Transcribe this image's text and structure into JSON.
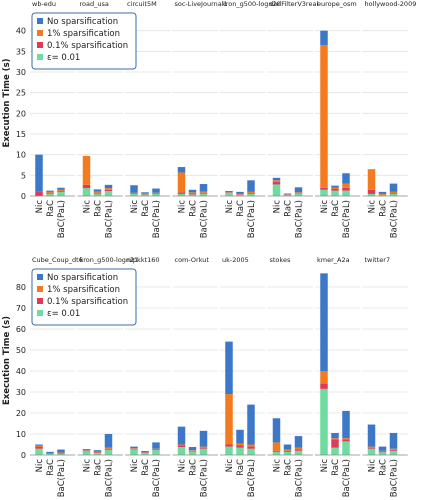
{
  "colors": {
    "No sparsification": "#3d78c8",
    "1% sparsification": "#f47a20",
    "0.1% sparsification": "#e0395a",
    "ε= 0.01": "#6ddc9e"
  },
  "chart_data": [
    {
      "type": "bar",
      "stacked": true,
      "ylabel": "Execution Time (s)",
      "ylim": [
        0,
        45
      ],
      "yticks": [
        0,
        5,
        10,
        15,
        20,
        25,
        30,
        35,
        40
      ],
      "legend": {
        "position": "top-left",
        "entries": [
          "No sparsification",
          "1% sparsification",
          "0.1% sparsification",
          "ε= 0.01"
        ]
      },
      "categories": [
        "Nic",
        "RaC",
        "BaC(PaL)"
      ],
      "panels": [
        {
          "title": "wb-edu",
          "bars": [
            {
              "blue": 9.0,
              "orange": 0.0,
              "red": 1.0,
              "green": 0.0
            },
            {
              "blue": 0.3,
              "orange": 0.2,
              "red": 0.2,
              "green": 0.6
            },
            {
              "blue": 0.5,
              "orange": 0.3,
              "red": 0.2,
              "green": 1.0
            }
          ]
        },
        {
          "title": "road_usa",
          "bars": [
            {
              "blue": 0.0,
              "orange": 7.0,
              "red": 0.8,
              "green": 1.9
            },
            {
              "blue": 0.5,
              "orange": 0.3,
              "red": 0.2,
              "green": 0.6
            },
            {
              "blue": 0.8,
              "orange": 0.4,
              "red": 0.3,
              "green": 1.2
            }
          ]
        },
        {
          "title": "circuit5M",
          "bars": [
            {
              "blue": 1.8,
              "orange": 0.0,
              "red": 0.2,
              "green": 0.6
            },
            {
              "blue": 0.3,
              "orange": 0.1,
              "red": 0.1,
              "green": 0.4
            },
            {
              "blue": 1.0,
              "orange": 0.2,
              "red": 0.1,
              "green": 0.5
            }
          ]
        },
        {
          "title": "soc-LiveJournal1",
          "bars": [
            {
              "blue": 1.3,
              "orange": 4.8,
              "red": 0.4,
              "green": 0.5
            },
            {
              "blue": 0.6,
              "orange": 0.3,
              "red": 0.2,
              "green": 0.4
            },
            {
              "blue": 1.8,
              "orange": 0.3,
              "red": 0.2,
              "green": 0.6
            }
          ]
        },
        {
          "title": "kron_g500-logn20",
          "bars": [
            {
              "blue": 0.3,
              "orange": 0.1,
              "red": 0.1,
              "green": 0.7
            },
            {
              "blue": 0.5,
              "orange": 0.1,
              "red": 0.1,
              "green": 0.3
            },
            {
              "blue": 2.8,
              "orange": 0.3,
              "red": 0.2,
              "green": 0.5
            }
          ]
        },
        {
          "title": "dielFilterV3real",
          "bars": [
            {
              "blue": 0.6,
              "orange": 0.4,
              "red": 0.6,
              "green": 2.8
            },
            {
              "blue": 0.2,
              "orange": 0.1,
              "red": 0.1,
              "green": 0.2
            },
            {
              "blue": 1.2,
              "orange": 0.2,
              "red": 0.1,
              "green": 0.6
            }
          ]
        },
        {
          "title": "europe_osm",
          "bars": [
            {
              "blue": 3.5,
              "orange": 34.5,
              "red": 0.5,
              "green": 1.5
            },
            {
              "blue": 0.5,
              "orange": 0.3,
              "red": 0.4,
              "green": 1.3
            },
            {
              "blue": 2.5,
              "orange": 1.0,
              "red": 0.7,
              "green": 1.3
            }
          ]
        },
        {
          "title": "hollywood-2009",
          "bars": [
            {
              "blue": 0.0,
              "orange": 5.0,
              "red": 1.0,
              "green": 0.5
            },
            {
              "blue": 0.5,
              "orange": 0.2,
              "red": 0.1,
              "green": 0.2
            },
            {
              "blue": 2.0,
              "orange": 0.3,
              "red": 0.2,
              "green": 0.5
            }
          ]
        }
      ]
    },
    {
      "type": "bar",
      "stacked": true,
      "ylabel": "Execution Time (s)",
      "ylim": [
        0,
        90
      ],
      "yticks": [
        0,
        10,
        20,
        30,
        40,
        50,
        60,
        70,
        80
      ],
      "legend": {
        "position": "top-left",
        "entries": [
          "No sparsification",
          "1% sparsification",
          "0.1% sparsification",
          "ε= 0.01"
        ]
      },
      "categories": [
        "Nic",
        "RaC",
        "BaC(PaL)"
      ],
      "panels": [
        {
          "title": "Cube_Coup_dt6",
          "bars": [
            {
              "blue": 0.5,
              "orange": 0.5,
              "red": 1.0,
              "green": 3.0
            },
            {
              "blue": 0.6,
              "orange": 0.2,
              "red": 0.2,
              "green": 0.5
            },
            {
              "blue": 1.4,
              "orange": 0.3,
              "red": 0.3,
              "green": 0.6
            }
          ]
        },
        {
          "title": "kron_g500-logn21",
          "bars": [
            {
              "blue": 0.6,
              "orange": 0.2,
              "red": 0.2,
              "green": 1.8
            },
            {
              "blue": 0.8,
              "orange": 0.2,
              "red": 0.3,
              "green": 1.0
            },
            {
              "blue": 6.5,
              "orange": 0.5,
              "red": 0.5,
              "green": 2.5
            }
          ]
        },
        {
          "title": "nlpkkt160",
          "bars": [
            {
              "blue": 0.8,
              "orange": 0.2,
              "red": 0.3,
              "green": 2.7
            },
            {
              "blue": 0.6,
              "orange": 0.1,
              "red": 0.2,
              "green": 1.0
            },
            {
              "blue": 3.0,
              "orange": 0.3,
              "red": 0.4,
              "green": 2.3
            }
          ]
        },
        {
          "title": "com-Orkut",
          "bars": [
            {
              "blue": 8.5,
              "orange": 0.5,
              "red": 0.7,
              "green": 3.8
            },
            {
              "blue": 1.5,
              "orange": 0.3,
              "red": 0.3,
              "green": 1.7
            },
            {
              "blue": 7.5,
              "orange": 0.5,
              "red": 0.5,
              "green": 3.0
            }
          ]
        },
        {
          "title": "uk-2005",
          "bars": [
            {
              "blue": 25.0,
              "orange": 24.0,
              "red": 1.0,
              "green": 4.0
            },
            {
              "blue": 6.5,
              "orange": 0.8,
              "red": 1.2,
              "green": 3.5
            },
            {
              "blue": 19.0,
              "orange": 1.0,
              "red": 1.0,
              "green": 3.0
            }
          ]
        },
        {
          "title": "stokes",
          "bars": [
            {
              "blue": 11.5,
              "orange": 4.0,
              "red": 0.5,
              "green": 1.5
            },
            {
              "blue": 2.5,
              "orange": 0.5,
              "red": 0.5,
              "green": 1.5
            },
            {
              "blue": 5.5,
              "orange": 0.8,
              "red": 0.7,
              "green": 2.0
            }
          ]
        },
        {
          "title": "kmer_A2a",
          "bars": [
            {
              "blue": 46.5,
              "orange": 6.0,
              "red": 2.5,
              "green": 31.5
            },
            {
              "blue": 2.5,
              "orange": 0.5,
              "red": 4.0,
              "green": 3.5
            },
            {
              "blue": 13.0,
              "orange": 0.5,
              "red": 1.0,
              "green": 6.5
            }
          ]
        },
        {
          "title": "twitter7",
          "bars": [
            {
              "blue": 10.5,
              "orange": 0.5,
              "red": 0.5,
              "green": 3.0
            },
            {
              "blue": 2.0,
              "orange": 0.3,
              "red": 0.4,
              "green": 1.3
            },
            {
              "blue": 7.5,
              "orange": 0.5,
              "red": 0.5,
              "green": 2.0
            }
          ]
        }
      ]
    }
  ]
}
